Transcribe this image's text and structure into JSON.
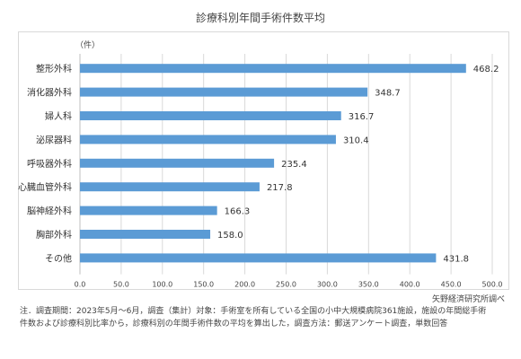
{
  "chart_data": {
    "type": "bar",
    "orientation": "horizontal",
    "title": "診療科別年間手術件数平均",
    "unit_label": "（件）",
    "categories": [
      "整形外科",
      "消化器外科",
      "婦人科",
      "泌尿器科",
      "呼吸器外科",
      "心臓血管外科",
      "脳神経外科",
      "胸部外科",
      "その他"
    ],
    "values": [
      468.2,
      348.7,
      316.7,
      310.4,
      235.4,
      217.8,
      166.3,
      158.0,
      431.8
    ],
    "value_labels": [
      "468.2",
      "348.7",
      "316.7",
      "310.4",
      "235.4",
      "217.8",
      "166.3",
      "158.0",
      "431.8"
    ],
    "xlim": [
      0,
      500
    ],
    "xticks": [
      "0.0",
      "50.0",
      "100.0",
      "150.0",
      "200.0",
      "250.0",
      "300.0",
      "350.0",
      "400.0",
      "450.0",
      "500.0"
    ],
    "grid": true,
    "bar_color": "#5b9bd5"
  },
  "source": "矢野経済研究所調べ",
  "note_lines": [
    "注．調査期間：2023年5月～6月，調査（集計）対象：手術室を所有している全国の小中大規模病院361施設，施設の年間総手術",
    "件数および診療科別比率から，診療科別の年間手術件数の平均を算出した，調査方法：郵送アンケート調査，単数回答"
  ]
}
